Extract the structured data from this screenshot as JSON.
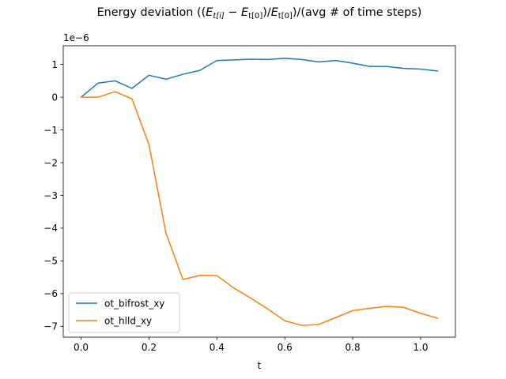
{
  "chart_data": {
    "type": "line",
    "title": "Energy deviation ((E_t[i] − E_t[0])/E_t[0])/(avg # of time steps)",
    "title_parts": {
      "prefix": "Energy deviation ((",
      "e1": "E",
      "s1": "t[i]",
      "minus": " − ",
      "e2": "E",
      "s2": "t[0]",
      "slash": ")/",
      "e3": "E",
      "s3": "t[0]",
      "suffix": ")/(avg # of time steps)"
    },
    "xlabel": "t",
    "ylabel": "",
    "y_offset_label": "1e−6",
    "xlim": [
      -0.0525,
      1.1025
    ],
    "ylim": [
      -7.33,
      1.57
    ],
    "x_ticks": [
      0.0,
      0.2,
      0.4,
      0.6,
      0.8,
      1.0
    ],
    "x_tick_labels": [
      "0.0",
      "0.2",
      "0.4",
      "0.6",
      "0.8",
      "1.0"
    ],
    "y_ticks": [
      1,
      0,
      -1,
      -2,
      -3,
      -4,
      -5,
      -6,
      -7
    ],
    "y_tick_labels": [
      "1",
      "0",
      "−1",
      "−2",
      "−3",
      "−4",
      "−5",
      "−6",
      "−7"
    ],
    "grid": false,
    "legend_position": "lower-left",
    "x": [
      0.0,
      0.05,
      0.1,
      0.15,
      0.2,
      0.25,
      0.3,
      0.35,
      0.4,
      0.45,
      0.5,
      0.55,
      0.6,
      0.65,
      0.7,
      0.75,
      0.8,
      0.85,
      0.9,
      0.95,
      1.0,
      1.05
    ],
    "series": [
      {
        "name": "ot_bifrost_xy",
        "color": "#1f77b4",
        "values": [
          0.0,
          0.43,
          0.5,
          0.27,
          0.67,
          0.55,
          0.7,
          0.82,
          1.12,
          1.14,
          1.16,
          1.15,
          1.19,
          1.15,
          1.08,
          1.12,
          1.04,
          0.94,
          0.94,
          0.88,
          0.86,
          0.8
        ]
      },
      {
        "name": "ot_hlld_xy",
        "color": "#ff7f0e",
        "values": [
          0.0,
          0.0,
          0.17,
          -0.05,
          -1.45,
          -4.15,
          -5.57,
          -5.44,
          -5.45,
          -5.83,
          -6.14,
          -6.47,
          -6.83,
          -6.97,
          -6.94,
          -6.73,
          -6.52,
          -6.45,
          -6.39,
          -6.42,
          -6.6,
          -6.75
        ]
      }
    ]
  }
}
